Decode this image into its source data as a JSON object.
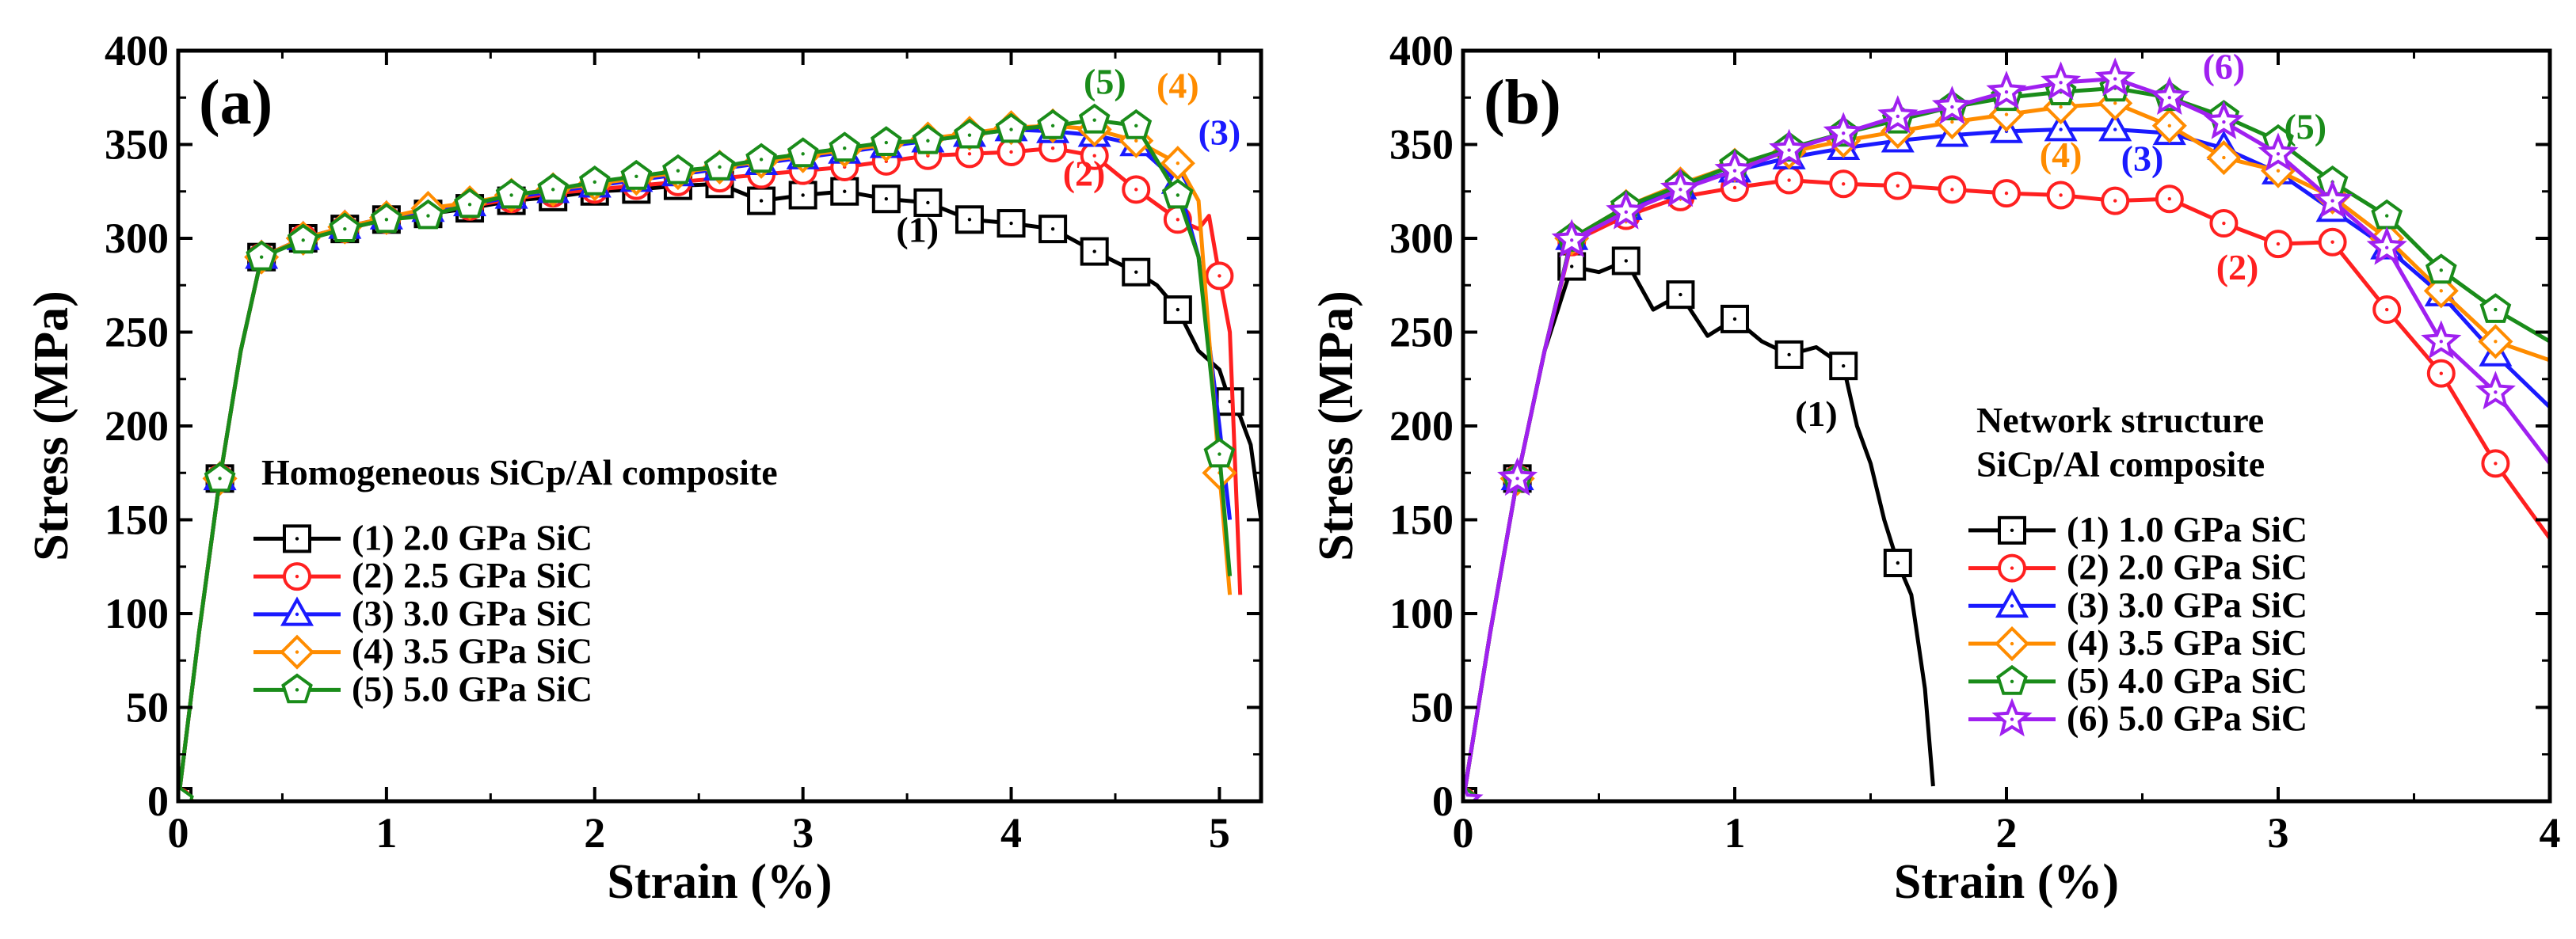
{
  "chart_data": [
    {
      "type": "line",
      "panel_label": "(a)",
      "xlabel": "Strain (%)",
      "ylabel": "Stress (MPa)",
      "xlim": [
        0,
        5.2
      ],
      "ylim": [
        0,
        400
      ],
      "xticks": [
        "0",
        "1",
        "2",
        "3",
        "4",
        "5"
      ],
      "yticks": [
        "0",
        "50",
        "100",
        "150",
        "200",
        "250",
        "300",
        "350",
        "400"
      ],
      "legend_title": [
        "Homogeneous SiCp/Al composite"
      ],
      "legend_position": "bottom-left",
      "series": [
        {
          "name": "(1) 2.0 GPa SiC",
          "color": "#000000",
          "marker": "square",
          "x": [
            0,
            0.1,
            0.2,
            0.3,
            0.4,
            0.6,
            0.8,
            1.0,
            1.2,
            1.4,
            1.6,
            1.8,
            2.0,
            2.2,
            2.4,
            2.6,
            2.8,
            3.0,
            3.2,
            3.4,
            3.6,
            3.8,
            4.0,
            4.2,
            4.4,
            4.6,
            4.7,
            4.8,
            4.9,
            5.0,
            5.05,
            5.1,
            5.15,
            5.2
          ],
          "y": [
            0,
            90,
            172,
            240,
            290,
            300,
            305,
            310,
            313,
            316,
            320,
            322,
            325,
            326,
            328,
            329,
            320,
            323,
            325,
            321,
            319,
            310,
            308,
            305,
            293,
            282,
            275,
            262,
            240,
            230,
            213,
            205,
            190,
            150
          ],
          "marker_idx": [
            0,
            2,
            4,
            5,
            6,
            7,
            8,
            9,
            10,
            11,
            12,
            13,
            14,
            15,
            16,
            17,
            18,
            19,
            20,
            21,
            22,
            23,
            24,
            25,
            27,
            30
          ]
        },
        {
          "name": "(2) 2.5 GPa SiC",
          "color": "#ff2020",
          "marker": "circle",
          "x": [
            0,
            0.1,
            0.2,
            0.3,
            0.4,
            0.6,
            0.8,
            1.0,
            1.2,
            1.4,
            1.6,
            1.8,
            2.0,
            2.2,
            2.4,
            2.6,
            2.8,
            3.0,
            3.2,
            3.4,
            3.6,
            3.8,
            4.0,
            4.2,
            4.4,
            4.6,
            4.7,
            4.8,
            4.9,
            4.95,
            5.0,
            5.05,
            5.1
          ],
          "y": [
            0,
            90,
            172,
            240,
            290,
            300,
            305,
            310,
            314,
            317,
            321,
            324,
            326,
            328,
            330,
            332,
            334,
            336,
            338,
            341,
            344,
            345,
            346,
            348,
            344,
            326,
            318,
            310,
            305,
            312,
            280,
            250,
            110
          ],
          "marker_idx": [
            0,
            2,
            4,
            5,
            6,
            7,
            8,
            9,
            10,
            11,
            12,
            13,
            14,
            15,
            16,
            17,
            18,
            19,
            20,
            21,
            22,
            23,
            24,
            25,
            27,
            30
          ]
        },
        {
          "name": "(3) 3.0 GPa SiC",
          "color": "#1a1aff",
          "marker": "triangle",
          "x": [
            0,
            0.1,
            0.2,
            0.3,
            0.4,
            0.6,
            0.8,
            1.0,
            1.2,
            1.4,
            1.6,
            1.8,
            2.0,
            2.2,
            2.4,
            2.6,
            2.8,
            3.0,
            3.2,
            3.4,
            3.6,
            3.8,
            4.0,
            4.2,
            4.4,
            4.6,
            4.8,
            4.9,
            5.0,
            5.05
          ],
          "y": [
            0,
            90,
            172,
            240,
            290,
            300,
            306,
            311,
            315,
            318,
            322,
            325,
            328,
            331,
            334,
            337,
            340,
            343,
            346,
            349,
            352,
            355,
            358,
            357,
            355,
            350,
            330,
            290,
            200,
            150
          ],
          "marker_idx": [
            0,
            2,
            4,
            5,
            6,
            7,
            8,
            9,
            10,
            11,
            12,
            13,
            14,
            15,
            16,
            17,
            18,
            19,
            20,
            21,
            22,
            23,
            24,
            25,
            26
          ]
        },
        {
          "name": "(4) 3.5 GPa SiC",
          "color": "#ff8c00",
          "marker": "diamond",
          "x": [
            0,
            0.1,
            0.2,
            0.3,
            0.4,
            0.6,
            0.8,
            1.0,
            1.2,
            1.4,
            1.6,
            1.8,
            2.0,
            2.2,
            2.4,
            2.6,
            2.8,
            3.0,
            3.2,
            3.4,
            3.6,
            3.8,
            4.0,
            4.2,
            4.4,
            4.6,
            4.8,
            4.9,
            5.0,
            5.05
          ],
          "y": [
            0,
            90,
            172,
            240,
            290,
            300,
            306,
            311,
            316,
            319,
            323,
            326,
            329,
            332,
            335,
            338,
            341,
            344,
            347,
            350,
            353,
            356,
            359,
            360,
            358,
            352,
            340,
            320,
            175,
            110
          ],
          "marker_idx": [
            0,
            2,
            4,
            5,
            6,
            7,
            8,
            9,
            10,
            11,
            12,
            13,
            14,
            15,
            16,
            17,
            18,
            19,
            20,
            21,
            22,
            23,
            24,
            25,
            26,
            28
          ]
        },
        {
          "name": "(5) 5.0 GPa SiC",
          "color": "#1a8c1a",
          "marker": "pentagon",
          "x": [
            0,
            0.1,
            0.2,
            0.3,
            0.4,
            0.6,
            0.8,
            1.0,
            1.2,
            1.4,
            1.6,
            1.8,
            2.0,
            2.2,
            2.4,
            2.6,
            2.8,
            3.0,
            3.2,
            3.4,
            3.6,
            3.8,
            4.0,
            4.2,
            4.4,
            4.6,
            4.8,
            4.9,
            5.0,
            5.05
          ],
          "y": [
            0,
            90,
            172,
            240,
            290,
            299,
            305,
            310,
            312,
            318,
            323,
            326,
            330,
            333,
            336,
            338,
            342,
            345,
            348,
            351,
            352,
            355,
            358,
            360,
            363,
            360,
            323,
            290,
            185,
            120
          ],
          "marker_idx": [
            0,
            2,
            4,
            5,
            6,
            7,
            8,
            9,
            10,
            11,
            12,
            13,
            14,
            15,
            16,
            17,
            18,
            19,
            20,
            21,
            22,
            23,
            24,
            25,
            26,
            28
          ]
        }
      ],
      "annotations": [
        {
          "text": "(1)",
          "x": 3.55,
          "y": 298,
          "color": "#000000"
        },
        {
          "text": "(2)",
          "x": 4.35,
          "y": 328,
          "color": "#ff2020"
        },
        {
          "text": "(3)",
          "x": 5.0,
          "y": 350,
          "color": "#1a1aff"
        },
        {
          "text": "(4)",
          "x": 4.8,
          "y": 375,
          "color": "#ff8c00"
        },
        {
          "text": "(5)",
          "x": 4.45,
          "y": 377,
          "color": "#1a8c1a"
        }
      ]
    },
    {
      "type": "line",
      "panel_label": "(b)",
      "xlabel": "Strain (%)",
      "ylabel": "Stress (MPa)",
      "xlim": [
        0,
        4
      ],
      "ylim": [
        0,
        400
      ],
      "xticks": [
        "0",
        "1",
        "2",
        "3",
        "4"
      ],
      "yticks": [
        "0",
        "50",
        "100",
        "150",
        "200",
        "250",
        "300",
        "350",
        "400"
      ],
      "legend_title": [
        "Network structure",
        "SiCp/Al composite"
      ],
      "legend_position": "bottom-right",
      "series": [
        {
          "name": "(1) 1.0 GPa SiC",
          "color": "#000000",
          "marker": "square",
          "x": [
            0,
            0.1,
            0.2,
            0.3,
            0.4,
            0.5,
            0.6,
            0.7,
            0.8,
            0.9,
            1.0,
            1.1,
            1.2,
            1.3,
            1.4,
            1.45,
            1.5,
            1.55,
            1.6,
            1.65,
            1.7,
            1.73
          ],
          "y": [
            0,
            90,
            172,
            240,
            285,
            282,
            288,
            262,
            270,
            248,
            257,
            245,
            238,
            242,
            232,
            200,
            180,
            150,
            127,
            110,
            60,
            8
          ],
          "marker_idx": [
            0,
            2,
            4,
            6,
            8,
            10,
            12,
            14,
            18
          ]
        },
        {
          "name": "(2) 2.0 GPa SiC",
          "color": "#ff2020",
          "marker": "circle",
          "x": [
            0,
            0.1,
            0.2,
            0.3,
            0.4,
            0.6,
            0.8,
            1.0,
            1.2,
            1.4,
            1.6,
            1.8,
            2.0,
            2.2,
            2.4,
            2.6,
            2.8,
            3.0,
            3.2,
            3.4,
            3.6,
            3.8,
            4.0
          ],
          "y": [
            0,
            90,
            172,
            240,
            298,
            312,
            322,
            327,
            331,
            329,
            328,
            326,
            324,
            323,
            320,
            321,
            308,
            297,
            298,
            262,
            228,
            180,
            140
          ],
          "marker_idx": [
            0,
            2,
            4,
            5,
            6,
            7,
            8,
            9,
            10,
            11,
            12,
            13,
            14,
            15,
            16,
            17,
            18,
            19,
            20,
            21
          ]
        },
        {
          "name": "(3) 3.0 GPa SiC",
          "color": "#1a1aff",
          "marker": "triangle",
          "x": [
            0,
            0.1,
            0.2,
            0.3,
            0.4,
            0.6,
            0.8,
            1.0,
            1.2,
            1.4,
            1.6,
            1.8,
            2.0,
            2.2,
            2.4,
            2.6,
            2.8,
            3.0,
            3.2,
            3.4,
            3.6,
            3.8,
            4.0
          ],
          "y": [
            0,
            90,
            172,
            240,
            300,
            316,
            327,
            336,
            343,
            348,
            352,
            355,
            357,
            358,
            358,
            356,
            348,
            335,
            315,
            295,
            270,
            238,
            210
          ],
          "marker_idx": [
            0,
            2,
            4,
            5,
            6,
            7,
            8,
            9,
            10,
            11,
            12,
            13,
            14,
            15,
            16,
            17,
            18,
            19,
            20,
            21
          ]
        },
        {
          "name": "(4) 3.5 GPa SiC",
          "color": "#ff8c00",
          "marker": "diamond",
          "x": [
            0,
            0.1,
            0.2,
            0.3,
            0.4,
            0.6,
            0.8,
            1.0,
            1.2,
            1.4,
            1.6,
            1.8,
            2.0,
            2.2,
            2.4,
            2.6,
            2.8,
            3.0,
            3.2,
            3.4,
            3.6,
            3.8,
            4.0
          ],
          "y": [
            0,
            90,
            172,
            240,
            300,
            317,
            329,
            339,
            346,
            352,
            357,
            362,
            366,
            370,
            372,
            360,
            343,
            336,
            322,
            300,
            272,
            245,
            235
          ],
          "marker_idx": [
            0,
            2,
            4,
            5,
            6,
            7,
            8,
            9,
            10,
            11,
            12,
            13,
            14,
            15,
            16,
            17,
            18,
            19,
            20,
            21
          ]
        },
        {
          "name": "(5) 4.0 GPa SiC",
          "color": "#1a8c1a",
          "marker": "pentagon",
          "x": [
            0,
            0.1,
            0.2,
            0.3,
            0.4,
            0.6,
            0.8,
            1.0,
            1.2,
            1.4,
            1.6,
            1.8,
            2.0,
            2.2,
            2.4,
            2.6,
            2.8,
            3.0,
            3.2,
            3.4,
            3.6,
            3.8,
            4.0
          ],
          "y": [
            0,
            90,
            172,
            240,
            300,
            317,
            328,
            339,
            348,
            356,
            363,
            370,
            375,
            378,
            380,
            375,
            365,
            352,
            330,
            312,
            283,
            262,
            245
          ],
          "marker_idx": [
            0,
            2,
            4,
            5,
            6,
            7,
            8,
            9,
            10,
            11,
            12,
            13,
            14,
            15,
            16,
            17,
            18,
            19,
            20,
            21
          ]
        },
        {
          "name": "(6) 5.0 GPa SiC",
          "color": "#a020f0",
          "marker": "star",
          "x": [
            0,
            0.1,
            0.2,
            0.3,
            0.4,
            0.6,
            0.8,
            1.0,
            1.2,
            1.4,
            1.6,
            1.8,
            2.0,
            2.2,
            2.4,
            2.6,
            2.8,
            3.0,
            3.2,
            3.4,
            3.6,
            3.8,
            4.0
          ],
          "y": [
            0,
            90,
            172,
            240,
            299,
            314,
            326,
            336,
            347,
            356,
            365,
            370,
            378,
            383,
            385,
            375,
            362,
            345,
            320,
            295,
            245,
            218,
            180
          ],
          "marker_idx": [
            0,
            2,
            4,
            5,
            6,
            7,
            8,
            9,
            10,
            11,
            12,
            13,
            14,
            15,
            16,
            17,
            18,
            19,
            20,
            21
          ]
        }
      ],
      "annotations": [
        {
          "text": "(1)",
          "x": 1.3,
          "y": 200,
          "color": "#000000"
        },
        {
          "text": "(2)",
          "x": 2.85,
          "y": 278,
          "color": "#ff2020"
        },
        {
          "text": "(3)",
          "x": 2.5,
          "y": 336,
          "color": "#1a1aff"
        },
        {
          "text": "(4)",
          "x": 2.2,
          "y": 338,
          "color": "#ff8c00"
        },
        {
          "text": "(5)",
          "x": 3.1,
          "y": 353,
          "color": "#1a8c1a"
        },
        {
          "text": "(6)",
          "x": 2.8,
          "y": 385,
          "color": "#a020f0"
        }
      ]
    }
  ]
}
